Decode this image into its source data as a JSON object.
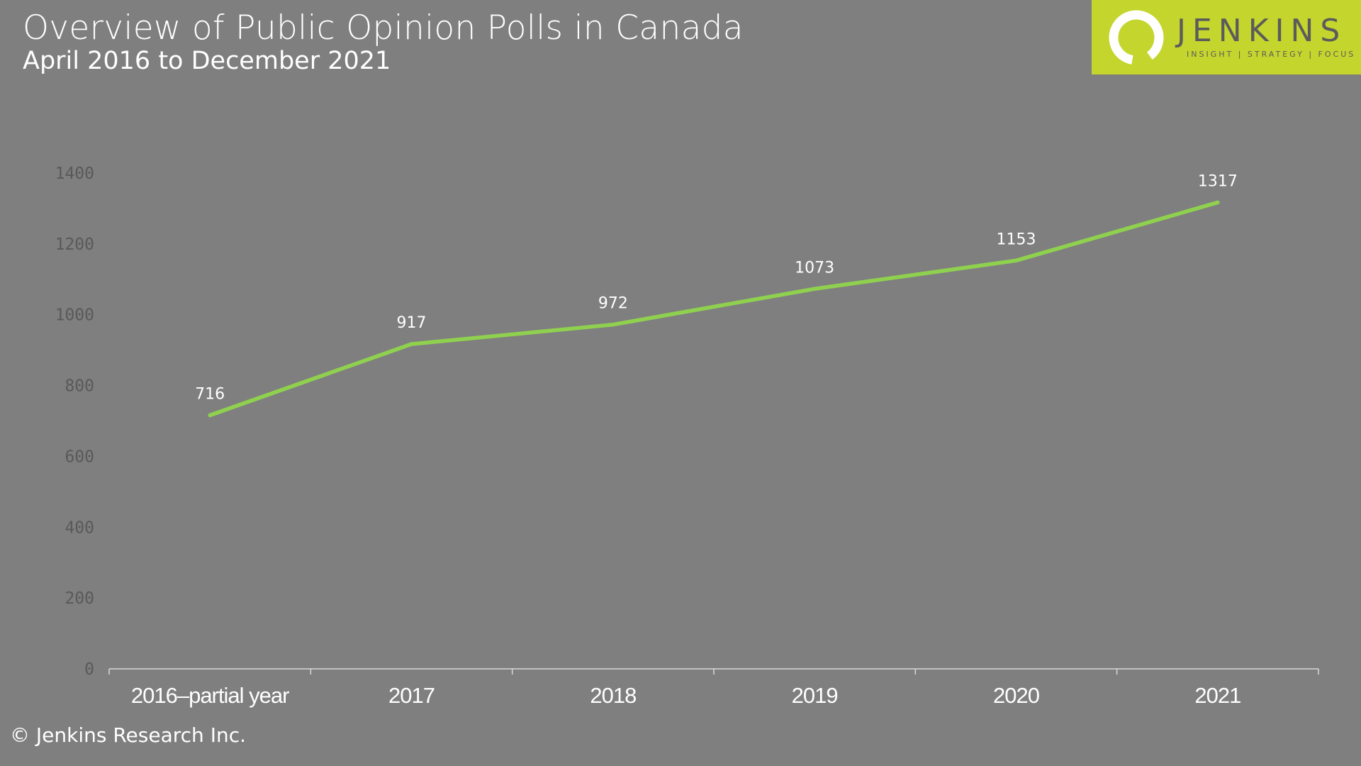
{
  "header": {
    "title": "Overview of Public Opinion Polls in Canada",
    "subtitle": "April 2016 to December 2021"
  },
  "logo": {
    "name": "JENKINS",
    "tagline": "INSIGHT | STRATEGY | FOCUS",
    "background_color": "#c4d52d",
    "text_color": "#5b5b5b"
  },
  "footer": {
    "copyright": "© Jenkins Research Inc."
  },
  "colors": {
    "background": "#7f7f7f",
    "line": "#8fd14f",
    "tick_label": "#595959",
    "category_label": "#ffffff",
    "data_label": "#ffffff"
  },
  "chart_data": {
    "type": "line",
    "categories": [
      "2016–partial year",
      "2017",
      "2018",
      "2019",
      "2020",
      "2021"
    ],
    "values": [
      716,
      917,
      972,
      1073,
      1153,
      1317
    ],
    "data_labels": [
      "716",
      "917",
      "972",
      "1073",
      "1153",
      "1317"
    ],
    "yticks": [
      0,
      200,
      400,
      600,
      800,
      1000,
      1200,
      1400
    ],
    "ylim": [
      0,
      1400
    ],
    "title": "",
    "xlabel": "",
    "ylabel": "",
    "grid": false,
    "legend": "none"
  }
}
